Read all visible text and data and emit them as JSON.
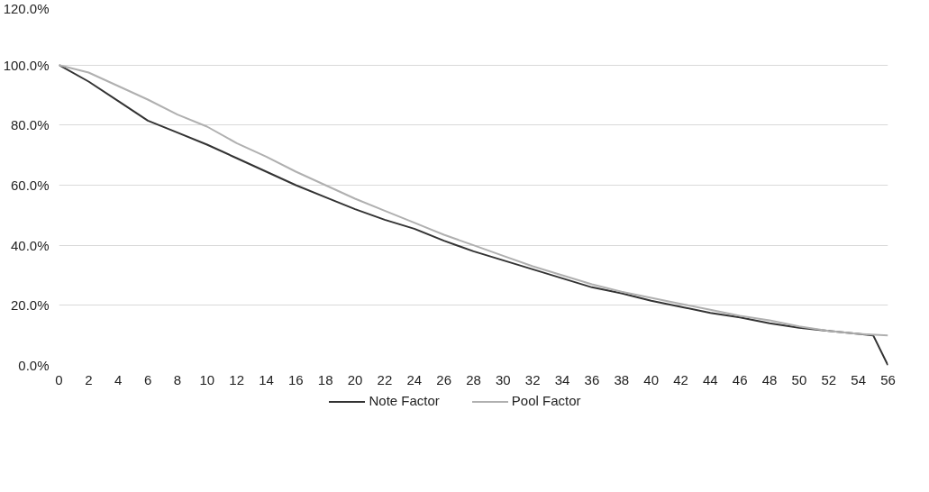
{
  "chart_data": {
    "type": "line",
    "xlim": [
      0,
      56
    ],
    "xticks": [
      0,
      2,
      4,
      6,
      8,
      10,
      12,
      14,
      16,
      18,
      20,
      22,
      24,
      26,
      28,
      30,
      32,
      34,
      36,
      38,
      40,
      42,
      44,
      46,
      48,
      50,
      52,
      54,
      56
    ],
    "ylim": [
      0,
      120
    ],
    "yticks": [
      {
        "value": 0,
        "label": "0.0%"
      },
      {
        "value": 20,
        "label": "20.0%"
      },
      {
        "value": 40,
        "label": "40.0%"
      },
      {
        "value": 60,
        "label": "60.0%"
      },
      {
        "value": 80,
        "label": "80.0%"
      },
      {
        "value": 100,
        "label": "100.0%"
      },
      {
        "value": 120,
        "label": "120.0%"
      }
    ],
    "grid": "y",
    "legend": "bottom",
    "series": [
      {
        "name": "Note Factor",
        "color": "#333333",
        "x": [
          0,
          2,
          4,
          6,
          8,
          10,
          12,
          14,
          16,
          18,
          20,
          22,
          24,
          26,
          28,
          30,
          32,
          34,
          36,
          38,
          40,
          42,
          44,
          46,
          48,
          50,
          52,
          54,
          55,
          56
        ],
        "values": [
          100,
          94.5,
          88,
          81.5,
          77.5,
          73.5,
          69,
          64.5,
          60,
          56,
          52,
          48.5,
          45.5,
          41.5,
          38,
          35,
          32,
          29,
          26,
          24,
          21.5,
          19.5,
          17.5,
          16,
          14,
          12.5,
          11.5,
          10.5,
          10,
          0
        ]
      },
      {
        "name": "Pool Factor",
        "color": "#b0b0b0",
        "x": [
          0,
          2,
          4,
          6,
          8,
          10,
          12,
          14,
          16,
          18,
          20,
          22,
          24,
          26,
          28,
          30,
          32,
          34,
          36,
          38,
          40,
          42,
          44,
          46,
          48,
          50,
          52,
          54,
          56
        ],
        "values": [
          100,
          97.5,
          93,
          88.5,
          83.5,
          79.5,
          74,
          69.5,
          64.5,
          60,
          55.5,
          51.5,
          47.5,
          43.5,
          40,
          36.5,
          33,
          30,
          27,
          24.5,
          22.5,
          20.5,
          18.5,
          16.5,
          15,
          13,
          11.5,
          10.5,
          10
        ]
      }
    ]
  }
}
